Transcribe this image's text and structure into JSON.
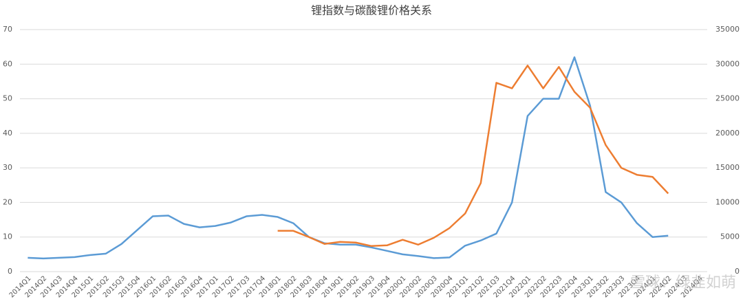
{
  "chart_data": {
    "type": "line",
    "title": "锂指数与碳酸锂价格关系",
    "watermark": "雪球：绿韭如萌",
    "categories": [
      "2014Q1",
      "2014Q2",
      "2014Q3",
      "2014Q4",
      "2015Q1",
      "2015Q2",
      "2015Q3",
      "2015Q4",
      "2016Q1",
      "2016Q2",
      "2016Q3",
      "2016Q4",
      "2017Q1",
      "2017Q2",
      "2017Q3",
      "2017Q4",
      "2018Q1",
      "2018Q2",
      "2018Q3",
      "2018Q4",
      "2019Q1",
      "2019Q2",
      "2019Q3",
      "2019Q4",
      "2020Q1",
      "2020Q2",
      "2020Q3",
      "2020Q4",
      "2021Q1",
      "2021Q2",
      "2021Q3",
      "2021Q4",
      "2022Q1",
      "2022Q2",
      "2022Q3",
      "2022Q4",
      "2023Q1",
      "2023Q2",
      "2023Q3",
      "2023Q4",
      "2024Q1",
      "2024Q2",
      "2024Q3",
      "2024Q4"
    ],
    "series": [
      {
        "color": "#5b9bd5",
        "values": [
          4,
          3.8,
          4,
          4.2,
          4.8,
          5.2,
          8,
          12,
          16,
          16.2,
          13.8,
          12.8,
          13.2,
          14.2,
          16,
          16.4,
          15.8,
          14,
          10,
          8.2,
          7.8,
          7.8,
          7,
          6,
          5,
          4.5,
          3.9,
          4.1,
          7.5,
          9,
          11,
          20,
          45,
          50,
          50,
          62,
          48,
          23,
          20,
          14,
          10,
          10.4,
          null,
          null
        ]
      },
      {
        "color": "#ed7d31",
        "axis": "y2",
        "values": [
          null,
          null,
          null,
          null,
          null,
          null,
          null,
          null,
          null,
          null,
          null,
          null,
          null,
          null,
          null,
          null,
          5900,
          5900,
          5000,
          4000,
          4300,
          4200,
          3700,
          3800,
          4600,
          3900,
          4900,
          6300,
          8400,
          12800,
          27300,
          26500,
          29800,
          26500,
          29600,
          26000,
          23700,
          18300,
          15000,
          14000,
          13700,
          11300,
          null,
          null
        ]
      }
    ],
    "ylim": [
      0,
      70
    ],
    "yticks": [
      0,
      10,
      20,
      30,
      40,
      50,
      60,
      70
    ],
    "y2lim": [
      0,
      35000
    ],
    "y2ticks": [
      0,
      5000,
      10000,
      15000,
      20000,
      25000,
      30000,
      35000
    ],
    "grid": true
  }
}
